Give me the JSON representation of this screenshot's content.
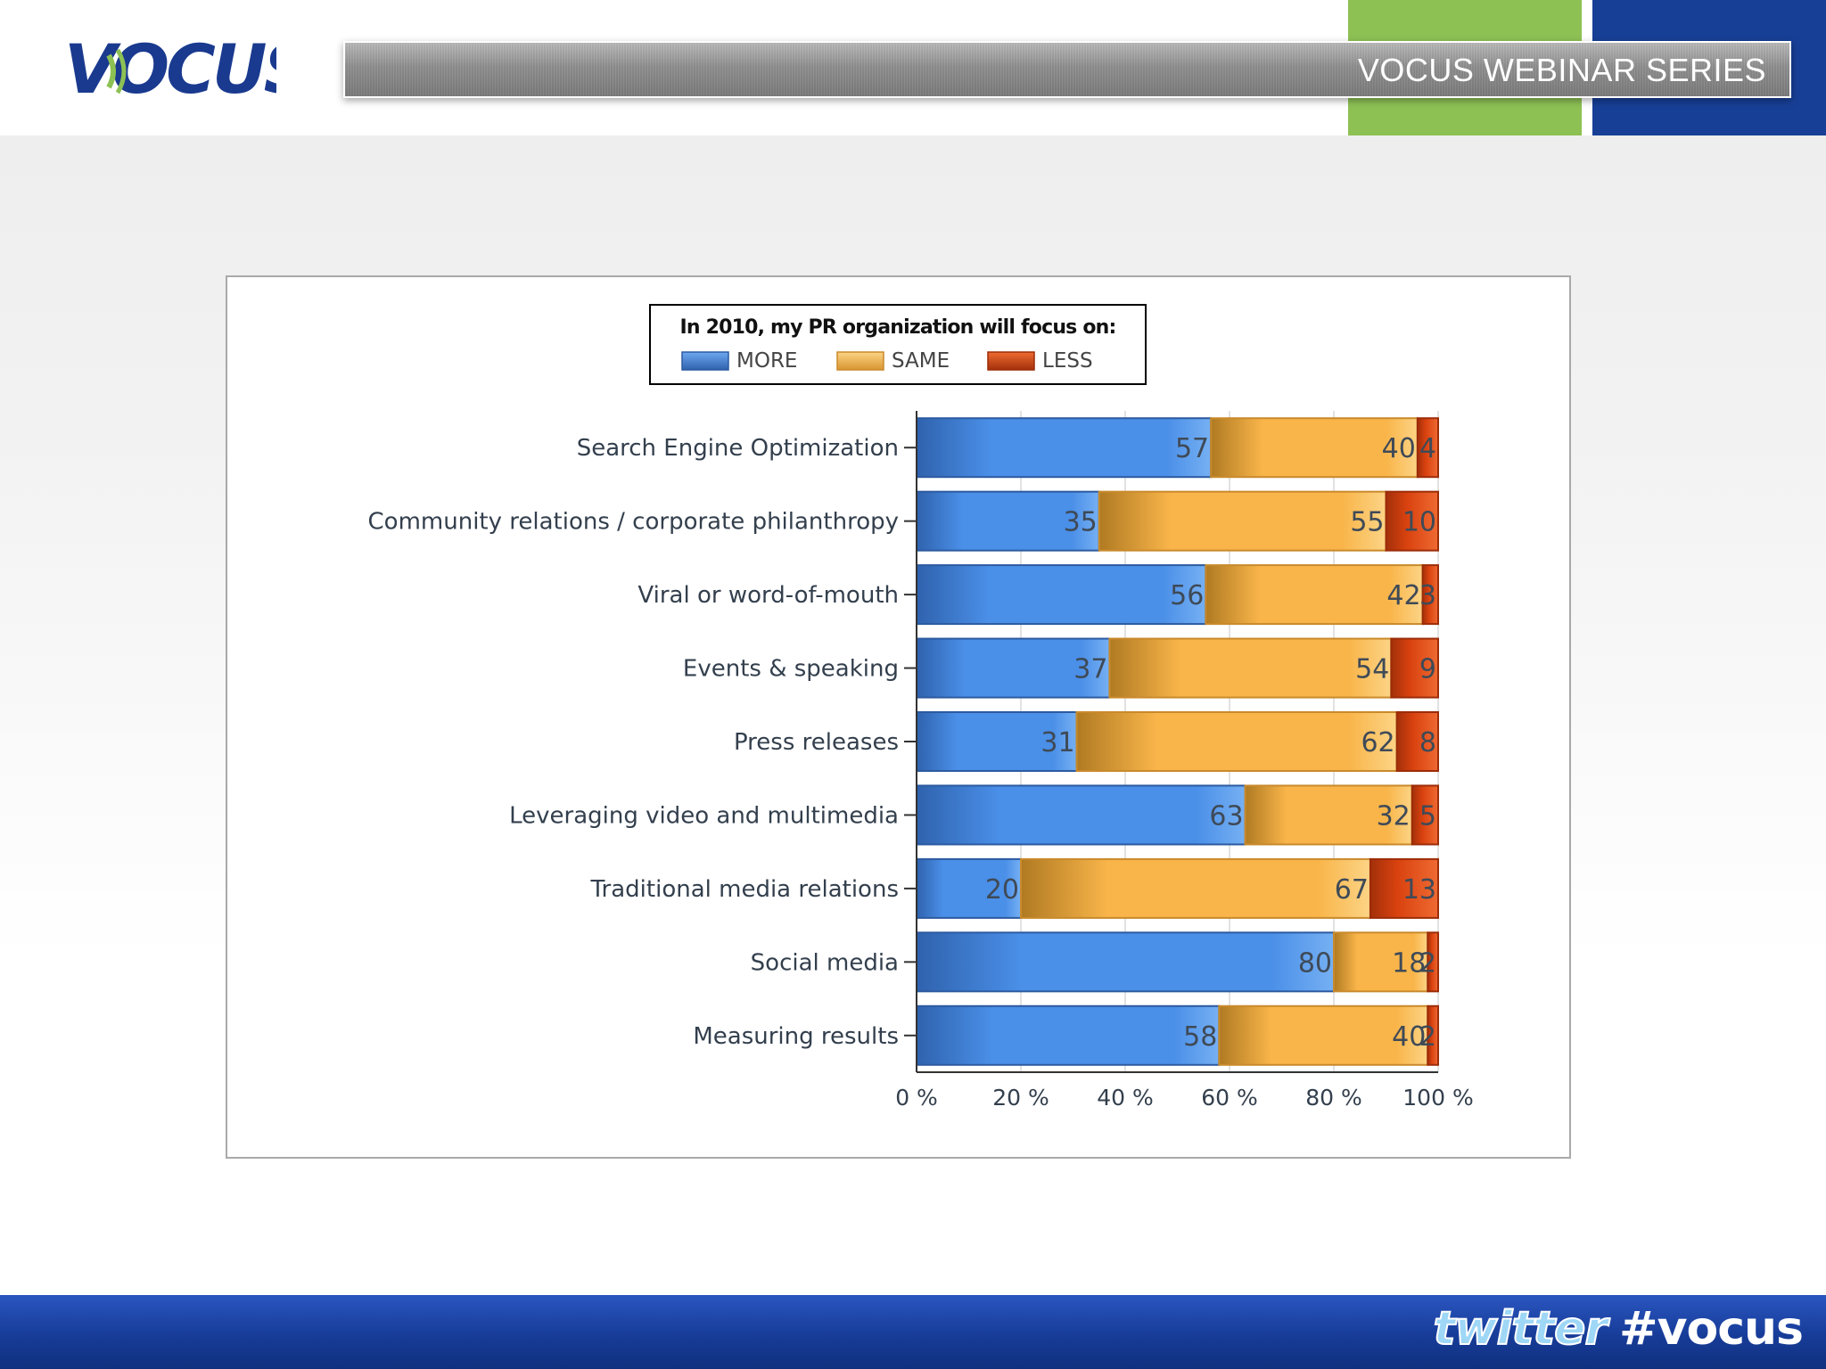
{
  "header": {
    "logo_text": "VOCUS",
    "series_title": "VOCUS WEBINAR SERIES"
  },
  "footer": {
    "twitter_word": "twitter",
    "hashtag": "#vocus"
  },
  "colors": {
    "more": "#4a8fe8",
    "same": "#f9b54a",
    "less": "#d9420f",
    "header_blue": "#173f96",
    "header_green": "#8dc154"
  },
  "chart_data": {
    "type": "bar",
    "orientation": "horizontal",
    "stacked": true,
    "normalized_percent": true,
    "legend_title": "In 2010, my PR organization will focus on:",
    "legend_position": "top",
    "categories": [
      "Search Engine Optimization",
      "Community relations / corporate philanthropy",
      "Viral or word-of-mouth",
      "Events & speaking",
      "Press releases",
      "Leveraging video and multimedia",
      "Traditional media relations",
      "Social media",
      "Measuring results"
    ],
    "series": [
      {
        "name": "MORE",
        "values": [
          57,
          35,
          56,
          37,
          31,
          63,
          20,
          80,
          58
        ]
      },
      {
        "name": "SAME",
        "values": [
          40,
          55,
          42,
          54,
          62,
          32,
          67,
          18,
          40
        ]
      },
      {
        "name": "LESS",
        "values": [
          4,
          10,
          3,
          9,
          8,
          5,
          13,
          2,
          2
        ]
      }
    ],
    "x_ticks": [
      "0 %",
      "20 %",
      "40 %",
      "60 %",
      "80 %",
      "100 %"
    ],
    "xlim": [
      0,
      100
    ],
    "grid": true
  }
}
